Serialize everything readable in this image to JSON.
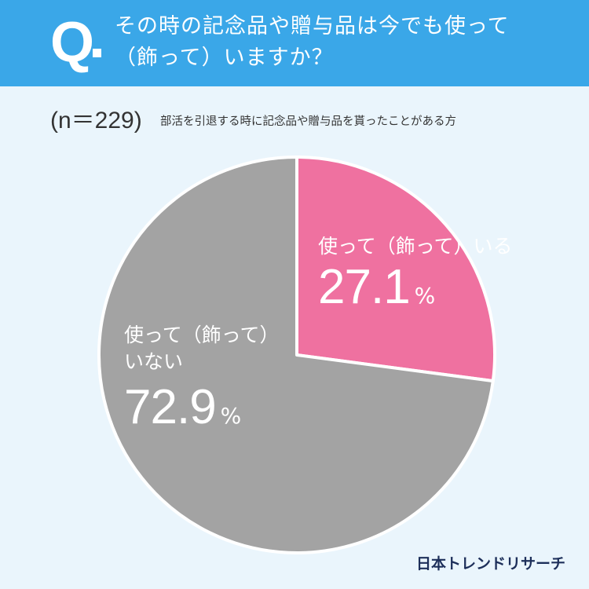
{
  "header": {
    "q_mark": "Q",
    "question_line1": "その時の記念品や贈与品は今でも使って",
    "question_line2": "（飾って）いますか？"
  },
  "sample_size": "(n＝229)",
  "subtitle": "部活を引退する時に記念品や贈与品を貰ったことがある方",
  "chart_data": {
    "type": "pie",
    "title": "その時の記念品や贈与品は今でも使って（飾って）いますか？",
    "slices": [
      {
        "label": "使って（飾って）いる",
        "value": 27.1,
        "color": "#ef71a0"
      },
      {
        "label": "使って（飾って）いない",
        "label_line1": "使って（飾って）",
        "label_line2": "いない",
        "value": 72.9,
        "color": "#a3a3a3"
      }
    ],
    "unit": "%",
    "start_angle": "12 o'clock",
    "direction": "clockwise",
    "slice_border": "#ffffff"
  },
  "brand": "日本トレンドリサーチ"
}
